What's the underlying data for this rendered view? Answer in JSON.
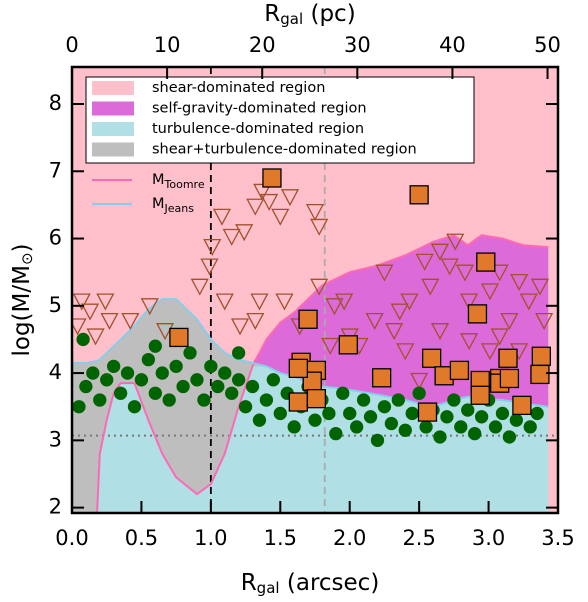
{
  "chart_data": {
    "type": "scatter",
    "xlabel": [
      "R",
      "gal",
      " (arcsec)"
    ],
    "x2label": [
      "R",
      "gal",
      " (pc)"
    ],
    "ylabel": [
      "log(M/M",
      "⊙",
      ")"
    ],
    "xlim": [
      0,
      3.5
    ],
    "x2lim": [
      0,
      51.1
    ],
    "ylim": [
      1.92,
      8.55
    ],
    "xticks": [
      {
        "value": 0,
        "label": "0.0"
      },
      0.5,
      {
        "value": 1,
        "label": "1.0"
      },
      1.5,
      {
        "value": 2,
        "label": "2.0"
      },
      2.5,
      {
        "value": 3,
        "label": "3.0"
      },
      3.5
    ],
    "x2ticks": [
      0,
      10,
      20,
      30,
      40,
      50
    ],
    "yticks": [
      2,
      3,
      4,
      5,
      6,
      7,
      8
    ],
    "legend": "upper left",
    "regions": [
      {
        "name": "shear-dominated region",
        "color": "#ffc0cb",
        "kind": "above"
      },
      {
        "name": "self-gravity-dominated region",
        "color": "#dc6ad8",
        "kind": "toomre-over-jeans"
      },
      {
        "name": "turbulence-dominated region",
        "color": "#b0e0e6",
        "kind": "below"
      },
      {
        "name": "shear+turbulence-dominated region",
        "color": "#bebebe",
        "kind": "jeans-over-toomre"
      }
    ],
    "x": [
      0,
      0.1,
      0.18,
      0.2,
      0.25,
      0.3,
      0.35,
      0.45,
      0.55,
      0.65,
      0.75,
      0.9,
      1.0,
      1.1,
      1.2,
      1.3,
      1.4,
      1.5,
      1.6,
      1.7,
      1.8,
      1.9,
      2.0,
      2.2,
      2.4,
      2.6,
      2.75,
      2.85,
      2.95,
      3.1,
      3.25,
      3.43
    ],
    "lines": [
      {
        "name": "M",
        "subscript": "Toomre",
        "color": "#ff69b4",
        "values": [
          null,
          null,
          1.9,
          2.8,
          3.3,
          3.7,
          3.85,
          3.85,
          3.3,
          2.8,
          2.45,
          2.2,
          2.35,
          2.8,
          3.5,
          4.1,
          4.5,
          4.75,
          4.9,
          5.1,
          5.3,
          5.4,
          5.5,
          5.6,
          5.75,
          5.95,
          6.05,
          5.9,
          6.05,
          6.0,
          5.9,
          5.87
        ]
      },
      {
        "name": "M",
        "subscript": "Jeans",
        "color": "#87ceeb",
        "values": [
          4.15,
          4.15,
          4.18,
          4.2,
          4.3,
          4.4,
          4.5,
          4.7,
          4.95,
          5.1,
          5.1,
          4.8,
          4.5,
          4.3,
          4.2,
          4.15,
          4.1,
          4.0,
          3.95,
          3.85,
          3.8,
          3.78,
          3.75,
          3.68,
          3.6,
          3.5,
          3.6,
          3.65,
          3.62,
          3.6,
          3.55,
          3.5
        ]
      }
    ],
    "vlines": [
      {
        "x": 1.0,
        "color": "#000000"
      },
      {
        "x": 1.82,
        "color": "#aaaaaa"
      }
    ],
    "hlines": [
      {
        "y": 3.07,
        "color": "#777777"
      }
    ],
    "scatter": [
      {
        "marker": "triangle",
        "color": "none",
        "edgecolor": "#a0522d",
        "x": [
          0.07,
          0.13,
          0.04,
          0.17,
          0.24,
          0.27,
          0.42,
          0.56,
          0.67,
          0.92,
          0.99,
          1.01,
          1.08,
          1.15,
          1.24,
          1.32,
          1.37,
          1.42,
          1.5,
          1.57,
          1.75,
          1.78,
          1.35,
          1.53,
          1.64,
          1.78,
          1.89,
          1.96,
          2.0,
          2.18,
          2.25,
          2.32,
          2.43,
          2.54,
          2.58,
          2.65,
          2.72,
          2.76,
          2.83,
          2.86,
          3.01,
          3.08,
          3.22,
          3.29,
          3.37,
          3.4,
          2.4,
          2.5,
          2.65,
          2.86,
          3.08,
          3.22,
          1.32,
          1.21,
          1.1,
          1.86,
          2.07,
          2.36,
          3.15,
          3.01
        ],
        "values": [
          5.07,
          4.92,
          4.7,
          4.55,
          5.07,
          4.78,
          4.78,
          5.0,
          4.63,
          5.29,
          5.59,
          5.88,
          6.33,
          6.03,
          6.1,
          6.48,
          6.7,
          6.55,
          6.33,
          6.62,
          6.4,
          6.18,
          5.07,
          5.07,
          4.7,
          5.29,
          5.0,
          5.07,
          4.55,
          4.78,
          5.5,
          4.63,
          5.07,
          5.66,
          5.29,
          5.81,
          5.59,
          5.96,
          5.5,
          5.07,
          5.22,
          5.5,
          5.36,
          5.07,
          5.29,
          4.78,
          4.33,
          3.89,
          4.63,
          4.48,
          4.55,
          4.33,
          4.78,
          4.7,
          5.07,
          4.41,
          4.41,
          4.92,
          4.78,
          4.33
        ]
      },
      {
        "marker": "circle",
        "color": "#006400",
        "edgecolor": "#006400",
        "x": [
          0.05,
          0.1,
          0.15,
          0.2,
          0.25,
          0.3,
          0.35,
          0.4,
          0.45,
          0.5,
          0.55,
          0.6,
          0.65,
          0.7,
          0.75,
          0.8,
          0.85,
          0.9,
          0.95,
          1.0,
          1.05,
          1.1,
          1.15,
          1.2,
          1.25,
          1.3,
          1.35,
          1.4,
          1.45,
          1.5,
          1.55,
          1.6,
          1.65,
          1.7,
          1.75,
          1.8,
          1.85,
          1.9,
          1.95,
          2.0,
          2.05,
          2.1,
          2.15,
          2.2,
          2.25,
          2.3,
          2.35,
          2.4,
          2.45,
          2.5,
          2.55,
          2.6,
          2.65,
          2.7,
          2.75,
          2.8,
          2.85,
          2.9,
          2.95,
          3.0,
          3.05,
          3.1,
          3.15,
          3.2,
          3.25,
          3.3,
          3.35,
          0.08,
          0.6,
          1.2
        ],
        "values": [
          3.5,
          3.8,
          4.0,
          3.6,
          3.9,
          4.1,
          3.7,
          4.0,
          3.5,
          3.9,
          4.2,
          3.7,
          4.0,
          3.6,
          4.1,
          3.8,
          4.3,
          3.9,
          3.6,
          4.1,
          3.8,
          4.0,
          3.7,
          3.9,
          3.5,
          3.8,
          3.3,
          3.6,
          3.9,
          3.4,
          3.7,
          3.2,
          3.5,
          3.8,
          3.3,
          3.6,
          3.4,
          3.1,
          3.7,
          3.4,
          3.2,
          3.6,
          3.35,
          3.0,
          3.5,
          3.25,
          3.6,
          3.15,
          3.4,
          3.7,
          3.2,
          3.45,
          3.05,
          3.35,
          3.6,
          3.2,
          3.45,
          3.1,
          3.35,
          3.6,
          3.2,
          3.4,
          3.05,
          3.3,
          3.55,
          3.2,
          3.4,
          4.5,
          4.4,
          4.3
        ]
      },
      {
        "marker": "square",
        "color": "#e07a2a",
        "edgecolor": "#000000",
        "x": [
          0.77,
          1.44,
          2.5,
          2.98,
          1.7,
          1.99,
          2.92,
          1.65,
          1.76,
          1.73,
          1.63,
          1.76,
          2.23,
          2.59,
          2.68,
          2.56,
          2.79,
          2.94,
          2.94,
          3.08,
          3.14,
          3.24,
          3.37,
          3.38,
          3.08,
          3.15,
          1.63
        ],
        "values": [
          4.53,
          6.9,
          6.65,
          5.65,
          4.8,
          4.42,
          4.88,
          4.16,
          4.04,
          3.88,
          3.57,
          3.62,
          3.93,
          4.22,
          3.96,
          3.42,
          4.04,
          3.89,
          3.67,
          3.92,
          4.22,
          3.52,
          3.98,
          4.25,
          3.85,
          3.92,
          4.07
        ]
      }
    ]
  }
}
